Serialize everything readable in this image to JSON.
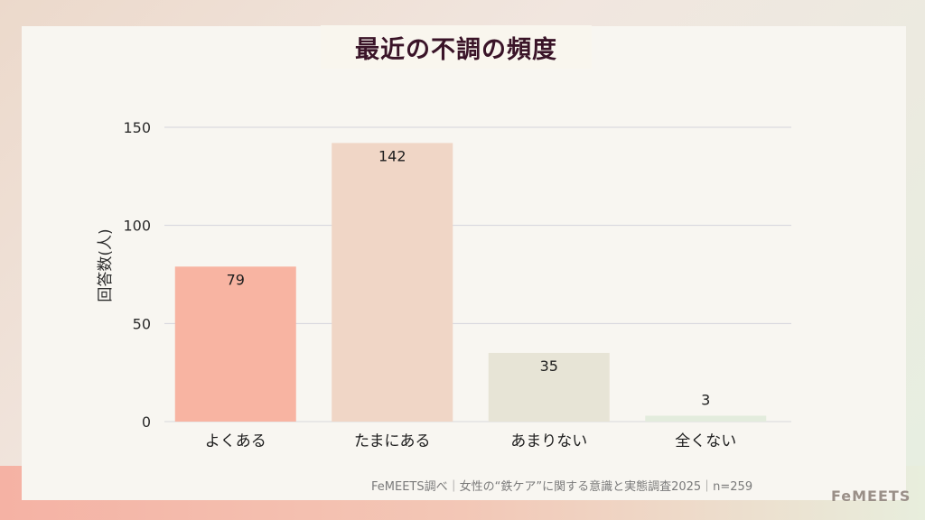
{
  "chart_data": {
    "type": "bar",
    "title": "最近の不調の頻度",
    "ylabel": "回答数(人)",
    "xlabel": "",
    "categories": [
      "よくある",
      "たまにある",
      "あまりない",
      "全くない"
    ],
    "values": [
      79,
      142,
      35,
      3
    ],
    "colors": [
      "#f8b4a2",
      "#f0d6c6",
      "#e7e4d6",
      "#e3ecdd"
    ],
    "ylim": [
      0,
      150
    ],
    "yticks": [
      0,
      50,
      100,
      150
    ],
    "grid": true
  },
  "footer": {
    "source": "FeMEETS調べ｜女性の“鉄ケア”に関する意識と実態調査2025｜n=259",
    "logo": "FeMEETS"
  }
}
